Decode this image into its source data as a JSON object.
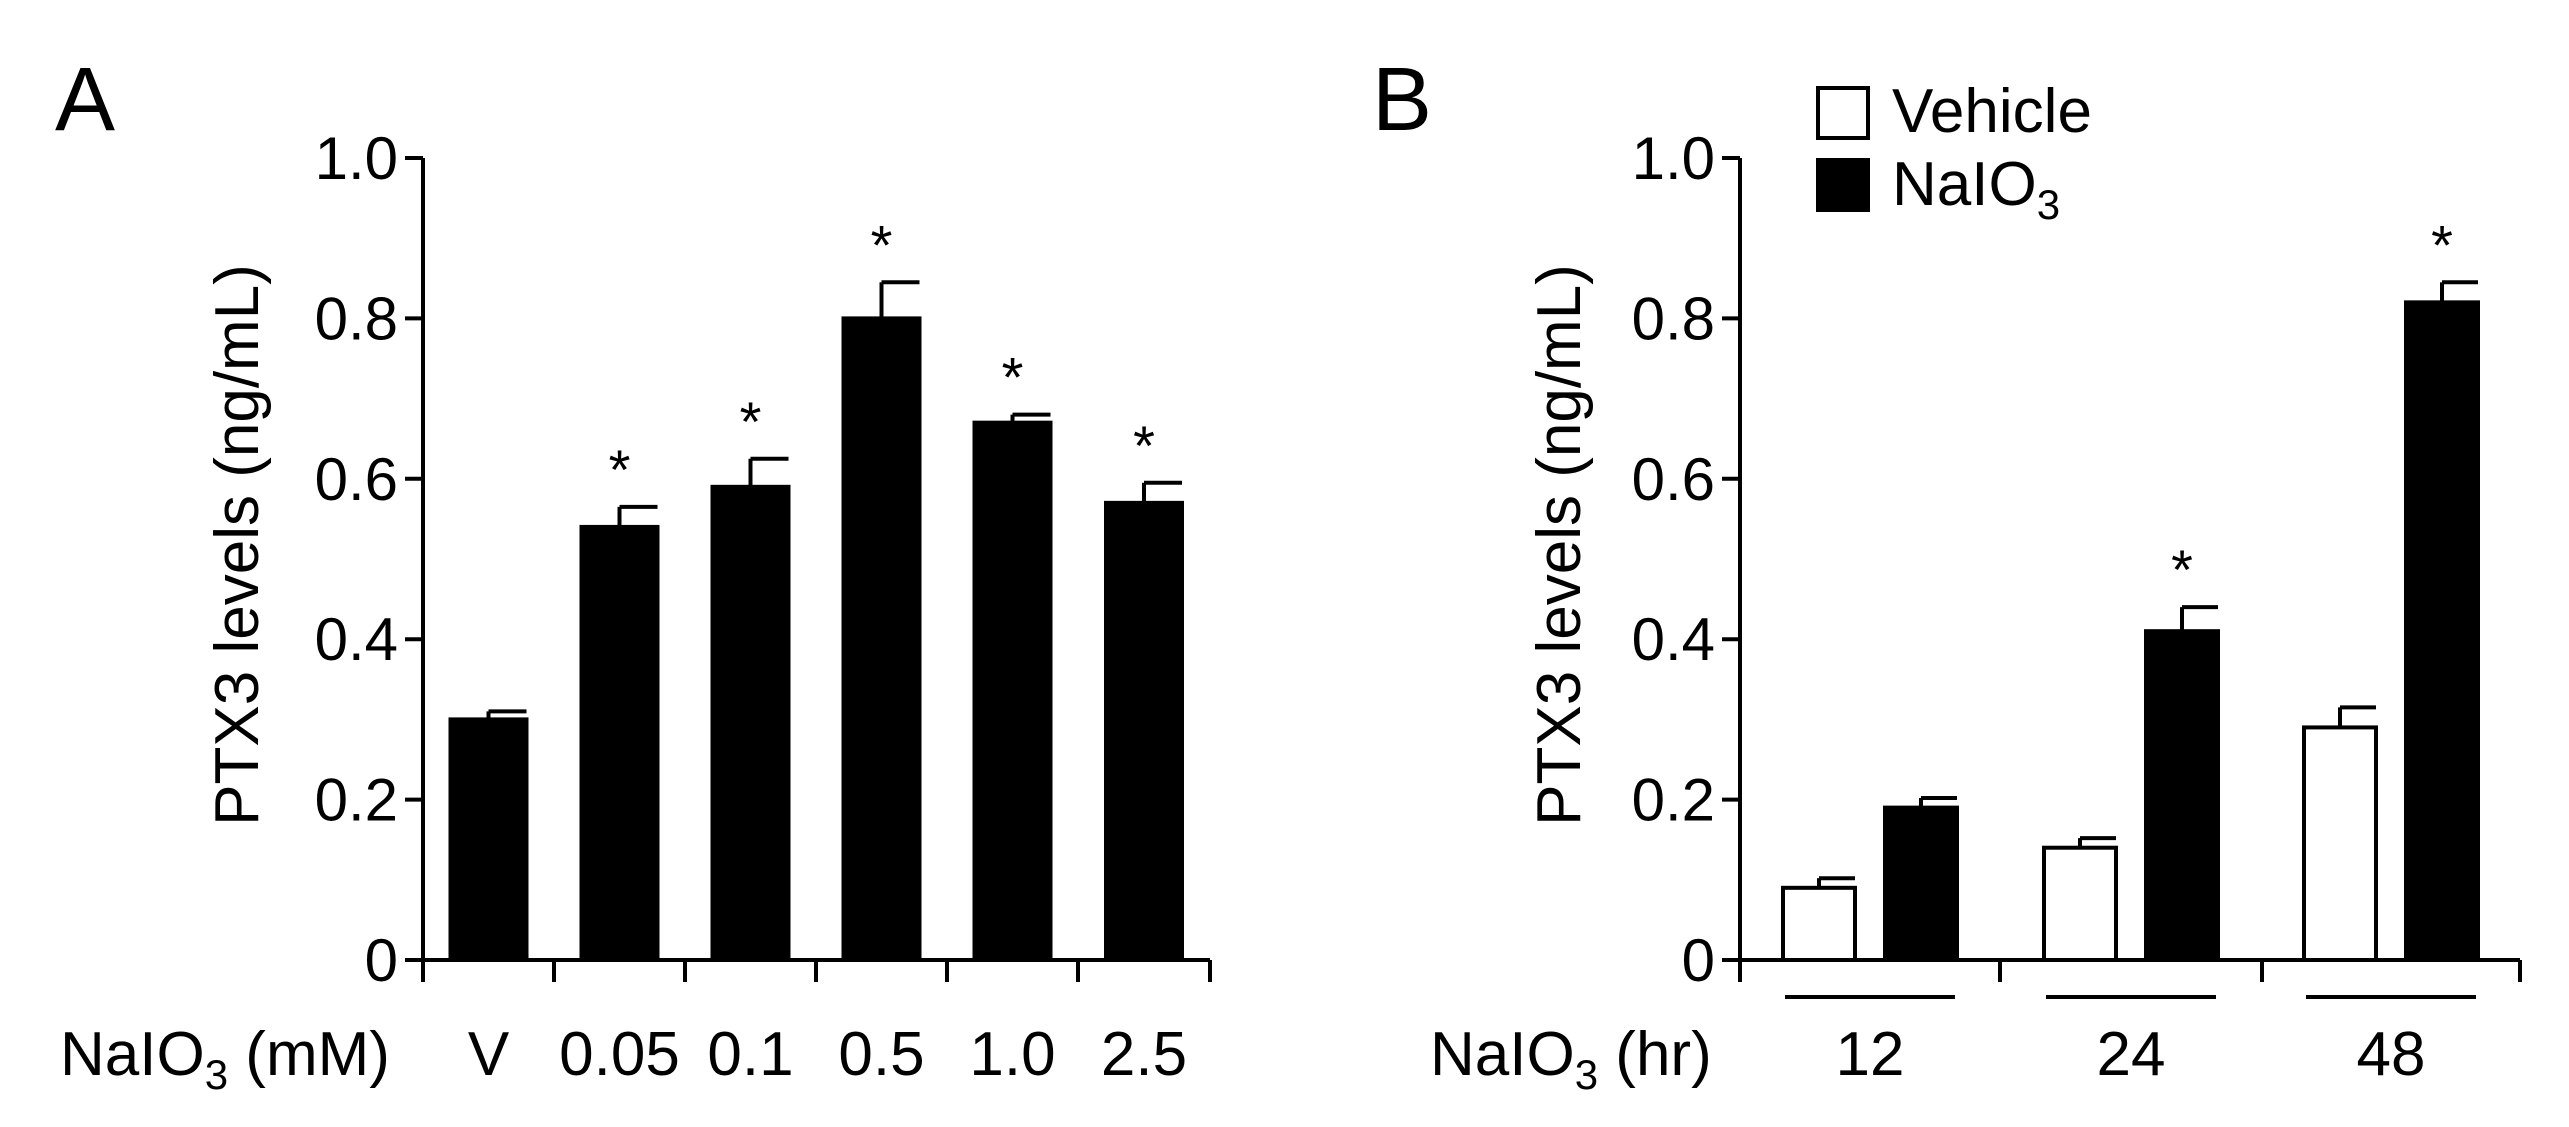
{
  "chart_data": [
    {
      "panel": "A",
      "type": "bar",
      "ylabel": "PTX3 levels (ng/mL)",
      "xlabel": {
        "main": "NaIO",
        "sub": "3",
        "suffix": " (mM)"
      },
      "ylim": [
        0,
        1.0
      ],
      "yticks": [
        "0",
        "0.2",
        "0.4",
        "0.6",
        "0.8",
        "1.0"
      ],
      "ytick_values": [
        0,
        0.2,
        0.4,
        0.6,
        0.8,
        1.0
      ],
      "categories": [
        "V",
        "0.05",
        "0.1",
        "0.5",
        "1.0",
        "2.5"
      ],
      "series": [
        {
          "name": "NaIO3",
          "color": "#000000",
          "values": [
            0.3,
            0.54,
            0.59,
            0.8,
            0.67,
            0.57
          ],
          "errors": [
            0.01,
            0.025,
            0.035,
            0.045,
            0.01,
            0.025
          ],
          "significant": [
            false,
            true,
            true,
            true,
            true,
            true
          ]
        }
      ],
      "significance_marker": "*"
    },
    {
      "panel": "B",
      "type": "bar",
      "ylabel": "PTX3 levels (ng/mL)",
      "xlabel": {
        "main": "NaIO",
        "sub": "3",
        "suffix": " (hr)"
      },
      "ylim": [
        0,
        1.0
      ],
      "yticks": [
        "0",
        "0.2",
        "0.4",
        "0.6",
        "0.8",
        "1.0"
      ],
      "ytick_values": [
        0,
        0.2,
        0.4,
        0.6,
        0.8,
        1.0
      ],
      "categories": [
        "12",
        "24",
        "48"
      ],
      "legend": [
        {
          "label": "Vehicle",
          "sub": "",
          "color": "#ffffff"
        },
        {
          "label": "NaIO",
          "sub": "3",
          "color": "#000000"
        }
      ],
      "series": [
        {
          "name": "Vehicle",
          "color": "#ffffff",
          "values": [
            0.09,
            0.14,
            0.29
          ],
          "errors": [
            0.012,
            0.012,
            0.025
          ],
          "significant": [
            false,
            false,
            false
          ]
        },
        {
          "name": "NaIO3",
          "color": "#000000",
          "values": [
            0.19,
            0.41,
            0.82
          ],
          "errors": [
            0.012,
            0.03,
            0.025
          ],
          "significant": [
            false,
            true,
            true
          ]
        }
      ],
      "significance_marker": "*"
    }
  ]
}
